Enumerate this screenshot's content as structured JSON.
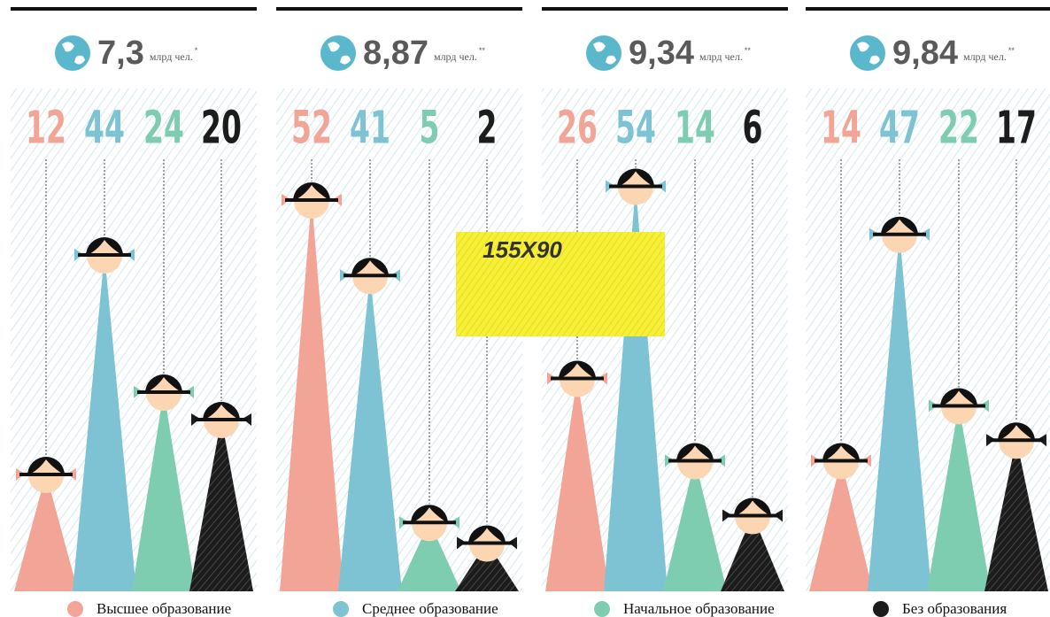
{
  "chart_data": [
    {
      "type": "pictogram",
      "title": "7,3",
      "unit": "млрд чел.",
      "note": "*",
      "values": [
        12,
        44,
        24,
        20
      ]
    },
    {
      "type": "pictogram",
      "title": "8,87",
      "unit": "млрд чел.",
      "note": "**",
      "values": [
        52,
        41,
        5,
        2
      ]
    },
    {
      "type": "pictogram",
      "title": "9,34",
      "unit": "млрд чел.",
      "note": "**",
      "values": [
        26,
        54,
        14,
        6
      ]
    },
    {
      "type": "pictogram",
      "title": "9,84",
      "unit": "млрд чел.",
      "note": "**",
      "values": [
        14,
        47,
        22,
        17
      ]
    }
  ],
  "legend": {
    "categories": [
      "Высшее образование",
      "Среднее образование",
      "Начальное образование",
      "Без образования"
    ],
    "colors": [
      "#f2a596",
      "#7dc3d3",
      "#7fcdb0",
      "#1c1c1c"
    ]
  },
  "placeholder": "155X90"
}
